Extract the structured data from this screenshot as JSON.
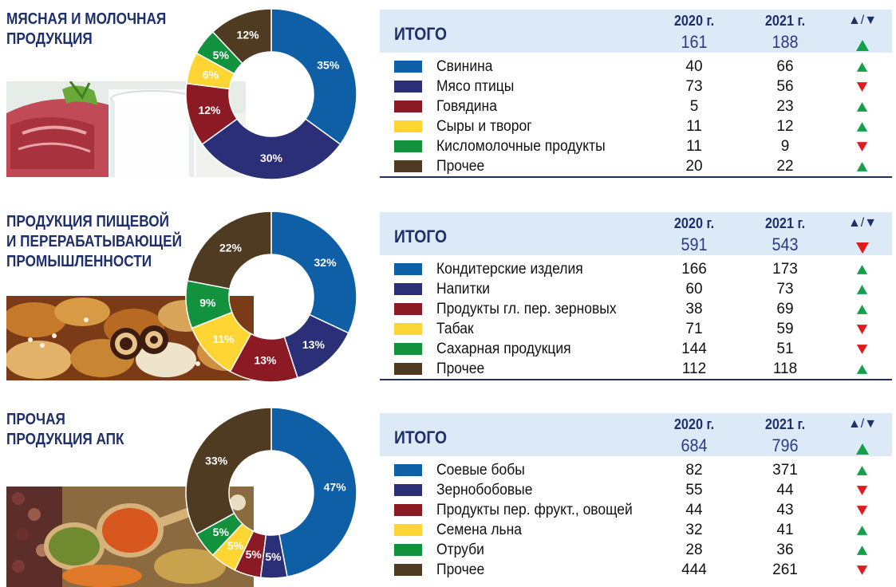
{
  "colors": {
    "blue": "#0f5fa6",
    "navy": "#2b2f77",
    "maroon": "#8b1a24",
    "yellow": "#ffd534",
    "green": "#13923d",
    "brown": "#4f3a22",
    "up": "#14a04a",
    "down": "#e01b1b"
  },
  "icons": {
    "up": "up-triangle-icon",
    "down": "down-triangle-icon"
  },
  "columns": {
    "col2020": "2020 г.",
    "col2021": "2021 г.",
    "dir": "▲/▼"
  },
  "total_label": "ИТОГО",
  "chart_data": [
    {
      "type": "pie",
      "title": "МЯСНАЯ И МОЛОЧНАЯ\nПРОДУКЦИЯ",
      "total": {
        "v2020": "161",
        "v2021": "188",
        "dir": "up"
      },
      "rows": [
        {
          "label": "Свинина",
          "color": "blue",
          "v2020": "40",
          "v2021": "66",
          "dir": "up"
        },
        {
          "label": "Мясо птицы",
          "color": "navy",
          "v2020": "73",
          "v2021": "56",
          "dir": "down"
        },
        {
          "label": "Говядина",
          "color": "maroon",
          "v2020": "5",
          "v2021": "23",
          "dir": "up"
        },
        {
          "label": "Сыры и творог",
          "color": "yellow",
          "v2020": "11",
          "v2021": "12",
          "dir": "up"
        },
        {
          "label": "Кисломолочные продукты",
          "color": "green",
          "v2020": "11",
          "v2021": "9",
          "dir": "down"
        },
        {
          "label": "Прочее",
          "color": "brown",
          "v2020": "20",
          "v2021": "22",
          "dir": "up"
        }
      ],
      "slices": [
        {
          "color": "blue",
          "value": 35,
          "label": "35%"
        },
        {
          "color": "navy",
          "value": 30,
          "label": "30%"
        },
        {
          "color": "maroon",
          "value": 12,
          "label": "12%"
        },
        {
          "color": "yellow",
          "value": 6,
          "label": "6%"
        },
        {
          "color": "green",
          "value": 5,
          "label": "5%"
        },
        {
          "color": "brown",
          "value": 12,
          "label": "12%"
        }
      ]
    },
    {
      "type": "pie",
      "title": "ПРОДУКЦИЯ ПИЩЕВОЙ\nИ ПЕРЕРАБАТЫВАЮЩЕЙ\nПРОМЫШЛЕННОСТИ",
      "total": {
        "v2020": "591",
        "v2021": "543",
        "dir": "down"
      },
      "rows": [
        {
          "label": "Кондитерские изделия",
          "color": "blue",
          "v2020": "166",
          "v2021": "173",
          "dir": "up"
        },
        {
          "label": "Напитки",
          "color": "navy",
          "v2020": "60",
          "v2021": "73",
          "dir": "up"
        },
        {
          "label": "Продукты гл. пер. зерновых",
          "color": "maroon",
          "v2020": "38",
          "v2021": "69",
          "dir": "up"
        },
        {
          "label": "Табак",
          "color": "yellow",
          "v2020": "71",
          "v2021": "59",
          "dir": "down"
        },
        {
          "label": "Сахарная продукция",
          "color": "green",
          "v2020": "144",
          "v2021": "51",
          "dir": "down"
        },
        {
          "label": "Прочее",
          "color": "brown",
          "v2020": "112",
          "v2021": "118",
          "dir": "up"
        }
      ],
      "slices": [
        {
          "color": "blue",
          "value": 32,
          "label": "32%"
        },
        {
          "color": "navy",
          "value": 13,
          "label": "13%"
        },
        {
          "color": "maroon",
          "value": 13,
          "label": "13%"
        },
        {
          "color": "yellow",
          "value": 11,
          "label": "11%"
        },
        {
          "color": "green",
          "value": 9,
          "label": "9%"
        },
        {
          "color": "brown",
          "value": 22,
          "label": "22%"
        }
      ]
    },
    {
      "type": "pie",
      "title": "ПРОЧАЯ\nПРОДУКЦИЯ АПК",
      "total": {
        "v2020": "684",
        "v2021": "796",
        "dir": "up"
      },
      "rows": [
        {
          "label": "Соевые бобы",
          "color": "blue",
          "v2020": "82",
          "v2021": "371",
          "dir": "up"
        },
        {
          "label": "Зернобобовые",
          "color": "navy",
          "v2020": "55",
          "v2021": "44",
          "dir": "down"
        },
        {
          "label": "Продукты пер. фрукт., овощей",
          "color": "maroon",
          "v2020": "44",
          "v2021": "43",
          "dir": "down"
        },
        {
          "label": "Семена льна",
          "color": "yellow",
          "v2020": "32",
          "v2021": "41",
          "dir": "up"
        },
        {
          "label": "Отруби",
          "color": "green",
          "v2020": "28",
          "v2021": "36",
          "dir": "up"
        },
        {
          "label": "Прочее",
          "color": "brown",
          "v2020": "444",
          "v2021": "261",
          "dir": "down"
        }
      ],
      "slices": [
        {
          "color": "blue",
          "value": 47,
          "label": "47%"
        },
        {
          "color": "navy",
          "value": 5,
          "label": "5%"
        },
        {
          "color": "maroon",
          "value": 5,
          "label": "5%"
        },
        {
          "color": "yellow",
          "value": 5,
          "label": "5%"
        },
        {
          "color": "green",
          "value": 5,
          "label": "5%"
        },
        {
          "color": "brown",
          "value": 33,
          "label": "33%"
        }
      ]
    }
  ]
}
